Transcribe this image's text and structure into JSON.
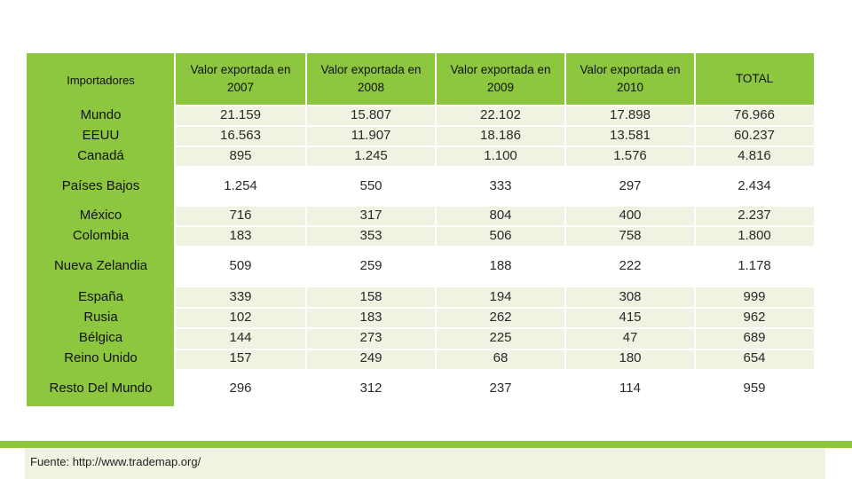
{
  "table": {
    "headers": [
      "Importadores",
      "Valor exportada en 2007",
      "Valor exportada en 2008",
      "Valor exportada en 2009",
      "Valor exportada en 2010",
      "TOTAL"
    ],
    "header_lines": [
      [
        "Importadores"
      ],
      [
        "Valor exportada en",
        "2007"
      ],
      [
        "Valor exportada en",
        "2008"
      ],
      [
        "Valor exportada en",
        "2009"
      ],
      [
        "Valor exportada en",
        "2010"
      ],
      [
        "TOTAL"
      ]
    ],
    "groups": [
      {
        "rows": [
          [
            "Mundo",
            "21.159",
            "15.807",
            "22.102",
            "17.898",
            "76.966"
          ],
          [
            "EEUU",
            "16.563",
            "11.907",
            "18.186",
            "13.581",
            "60.237"
          ],
          [
            "Canadá",
            "895",
            "1.245",
            "1.100",
            "1.576",
            "4.816"
          ]
        ]
      },
      {
        "rows": [
          [
            "Países Bajos",
            "1.254",
            "550",
            "333",
            "297",
            "2.434"
          ]
        ]
      },
      {
        "rows": [
          [
            "México",
            "716",
            "317",
            "804",
            "400",
            "2.237"
          ],
          [
            "Colombia",
            "183",
            "353",
            "506",
            "758",
            "1.800"
          ]
        ]
      },
      {
        "rows": [
          [
            "Nueva Zelandia",
            "509",
            "259",
            "188",
            "222",
            "1.178"
          ]
        ]
      },
      {
        "rows": [
          [
            "España",
            "339",
            "158",
            "194",
            "308",
            "999"
          ],
          [
            "Rusia",
            "102",
            "183",
            "262",
            "415",
            "962"
          ],
          [
            "Bélgica",
            "144",
            "273",
            "225",
            "47",
            "689"
          ],
          [
            "Reino Unido",
            "157",
            "249",
            "68",
            "180",
            "654"
          ]
        ]
      },
      {
        "rows": [
          [
            "Resto Del Mundo",
            "296",
            "312",
            "237",
            "114",
            "959"
          ]
        ]
      }
    ]
  },
  "footer": {
    "source": "Fuente: http://www.trademap.org/"
  },
  "colors": {
    "accent_green": "#8dc63f",
    "band_light": "#eef3e2"
  }
}
